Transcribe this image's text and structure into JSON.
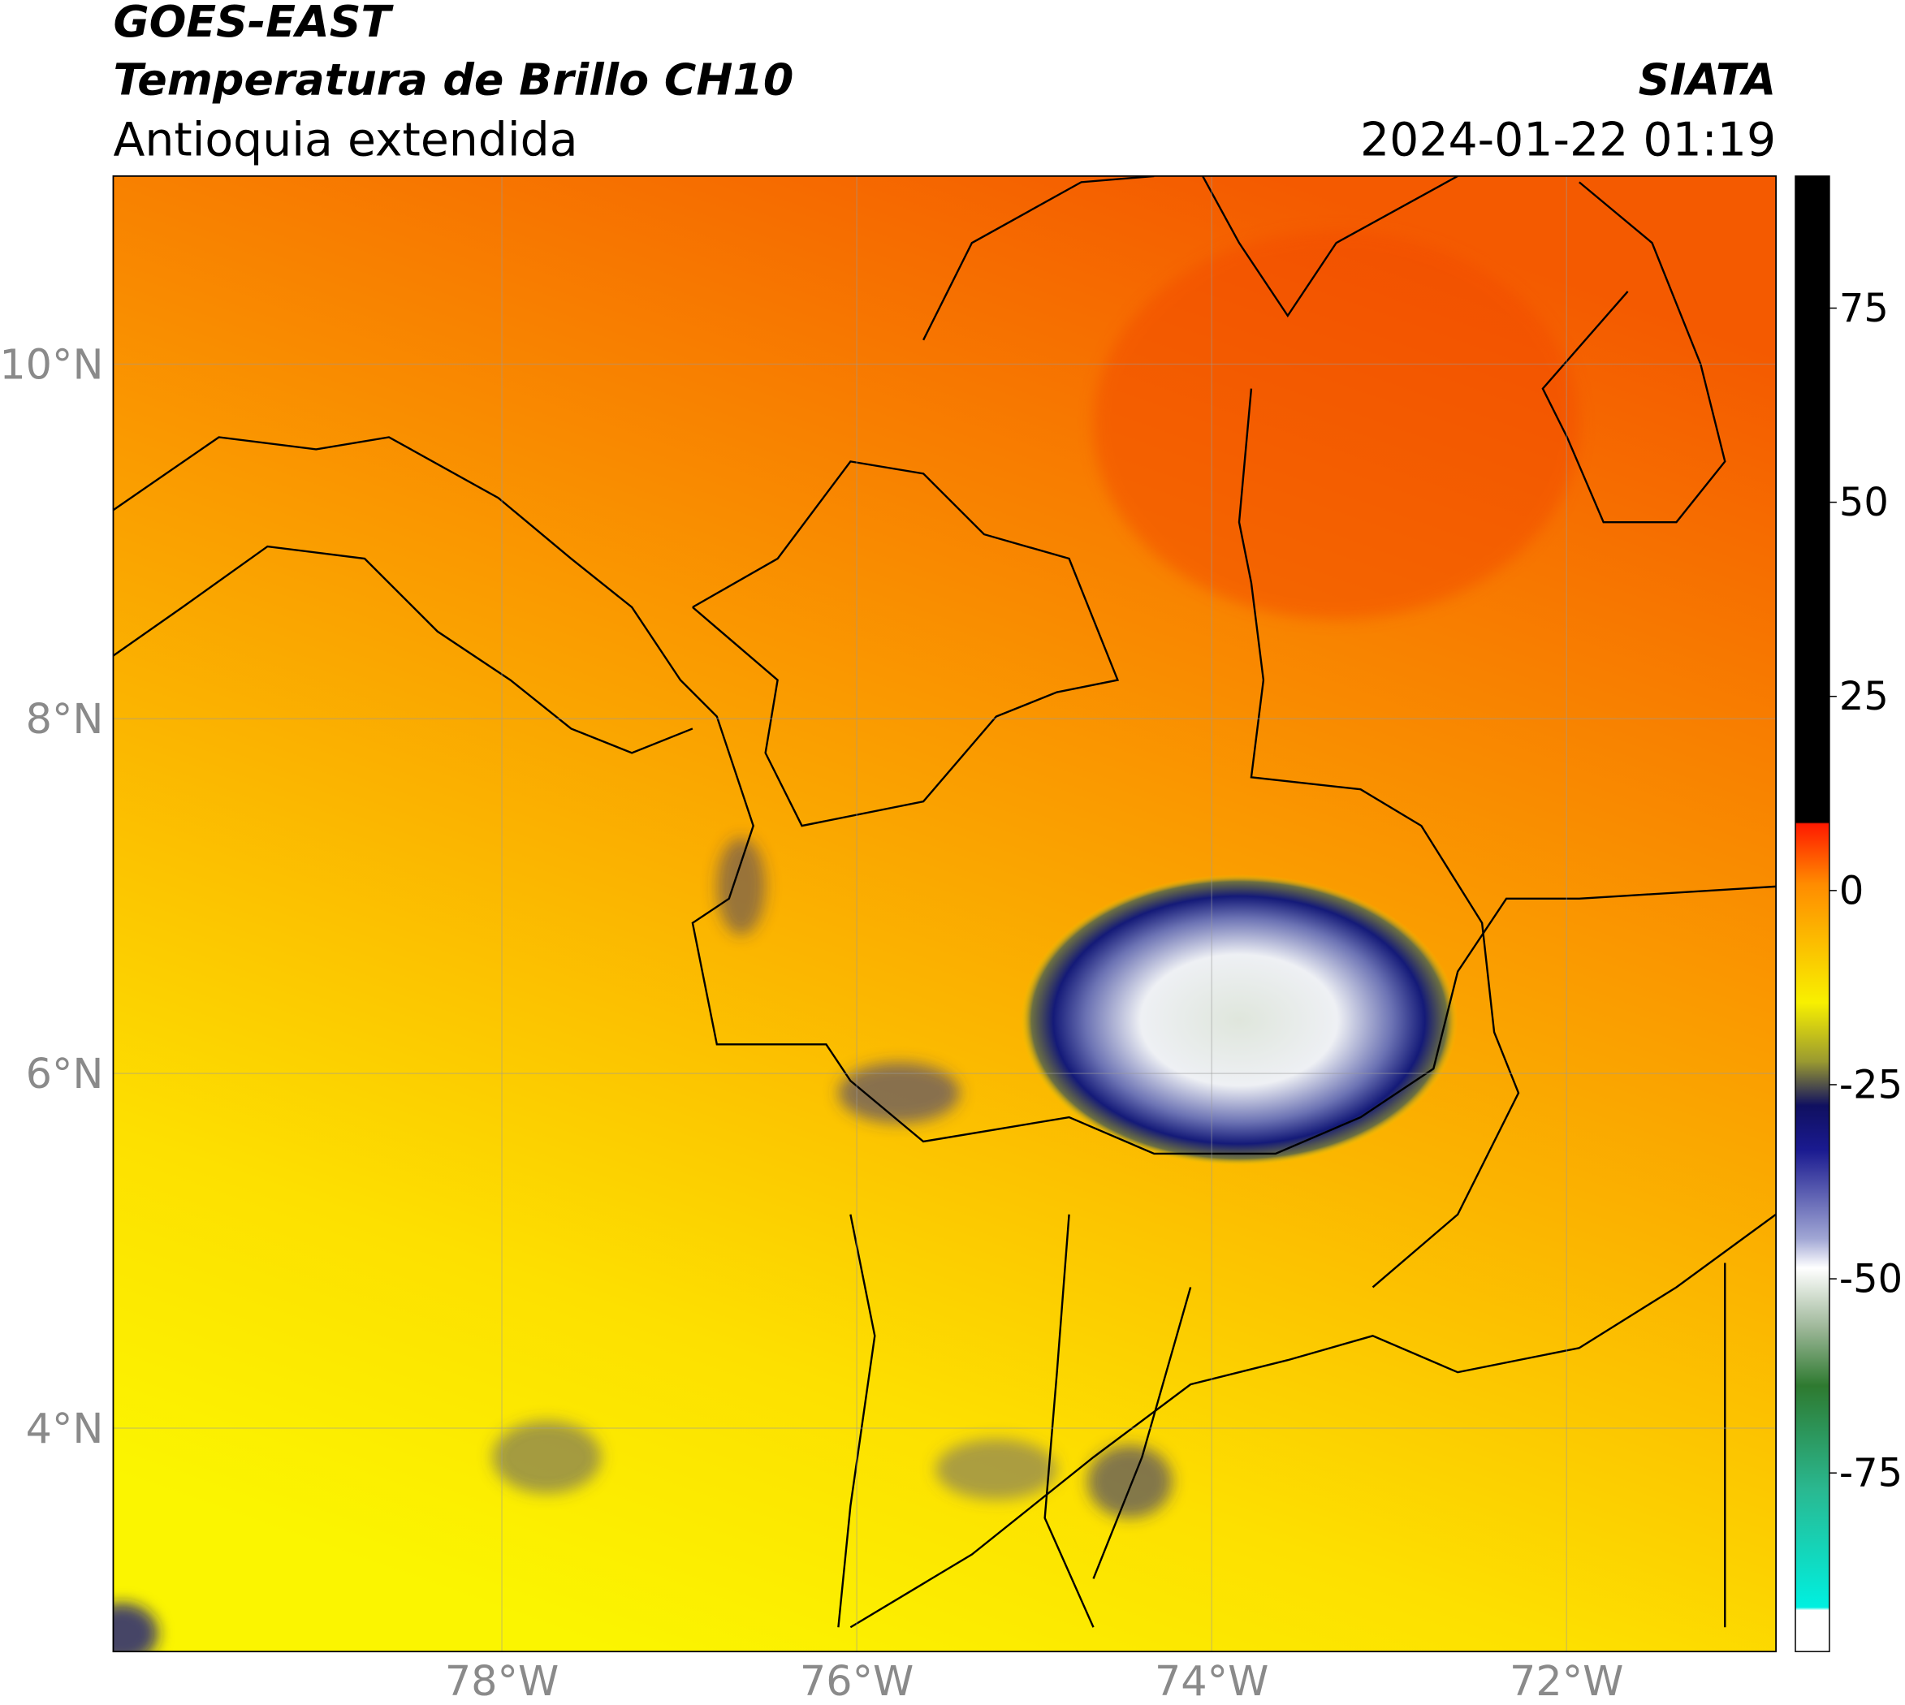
{
  "header": {
    "satellite": "GOES-EAST",
    "title": "Temperatura de Brillo CH10",
    "region": "Antioquia extendida",
    "source": "SIATA",
    "datetime": "2024-01-22 01:19"
  },
  "map": {
    "xlim": [
      -80.19,
      -70.82
    ],
    "ylim": [
      2.74,
      11.06
    ],
    "xticks": [
      {
        "value": -78,
        "label": "78°W"
      },
      {
        "value": -76,
        "label": "76°W"
      },
      {
        "value": -74,
        "label": "74°W"
      },
      {
        "value": -72,
        "label": "72°W"
      }
    ],
    "yticks": [
      {
        "value": 4,
        "label": "4°N"
      },
      {
        "value": 6,
        "label": "6°N"
      },
      {
        "value": 8,
        "label": "8°N"
      },
      {
        "value": 10,
        "label": "10°N"
      }
    ]
  },
  "colorbar": {
    "lim": [
      -98,
      92
    ],
    "ticks": [
      -75,
      -50,
      -25,
      0,
      25,
      50,
      75
    ]
  }
}
